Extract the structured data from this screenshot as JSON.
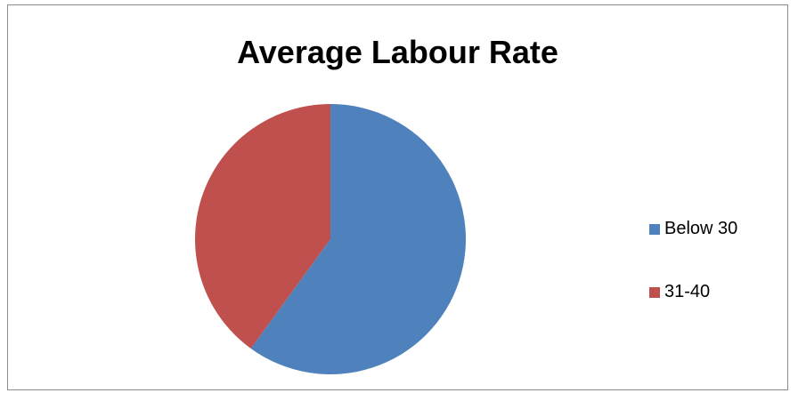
{
  "chart_data": {
    "type": "pie",
    "title": "Average Labour Rate",
    "categories": [
      "Below 30",
      "31-40"
    ],
    "values": [
      60,
      40
    ],
    "colors": [
      "#4F81BD",
      "#C0504D"
    ],
    "legend_placement": "right"
  }
}
